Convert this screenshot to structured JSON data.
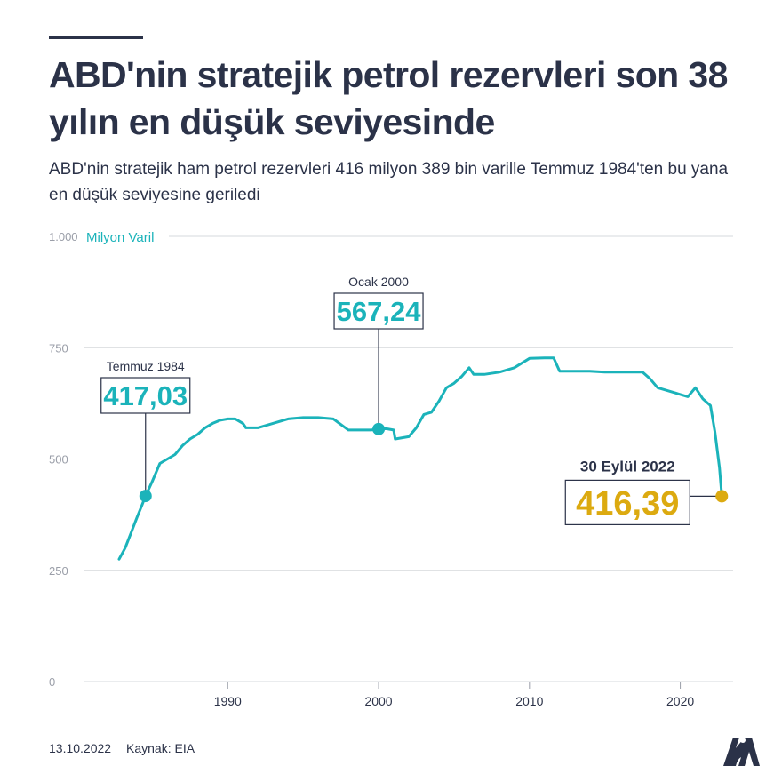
{
  "header": {
    "title": "ABD'nin stratejik petrol rezervleri son 38 yılın en düşük seviyesinde",
    "subtitle": "ABD'nin stratejik ham petrol rezervleri 416 milyon 389 bin varille Temmuz 1984'ten bu yana en düşük seviyesine geriledi"
  },
  "footer": {
    "date": "13.10.2022",
    "source": "Kaynak: EIA",
    "logo_text": "AA"
  },
  "colors": {
    "line": "#1bb3ba",
    "highlight": "#dcaa10",
    "text": "#2b3248",
    "grid": "#d6d8dc"
  },
  "chart_data": {
    "type": "line",
    "ylabel": "Milyon Varil",
    "ylim": [
      0,
      1000
    ],
    "yticks": [
      0,
      250,
      500,
      750,
      1000
    ],
    "ytick_labels": [
      "0",
      "250",
      "500",
      "750",
      "1.000"
    ],
    "xlim": [
      1980.5,
      2023.5
    ],
    "xticks": [
      1990,
      2000,
      2010,
      2020
    ],
    "xtick_labels": [
      "1990",
      "2000",
      "2010",
      "2020"
    ],
    "grid": true,
    "series": [
      {
        "x": [
          1982.8,
          1983.2,
          1983.6,
          1984.0,
          1984.3,
          1984.55,
          1985.0,
          1985.5,
          1986.0,
          1986.5,
          1987.0,
          1987.5,
          1988.0,
          1988.5,
          1989.0,
          1989.5,
          1990.0,
          1990.5,
          1991.0,
          1991.2,
          1992.0,
          1993.0,
          1994.0,
          1995.0,
          1996.0,
          1997.0,
          1998.0,
          1999.0,
          1999.5,
          2000.0,
          2000.5,
          2001.0,
          2001.1,
          2002.0,
          2002.5,
          2003.0,
          2003.5,
          2004.0,
          2004.5,
          2005.0,
          2005.5,
          2006.0,
          2006.3,
          2007.0,
          2008.0,
          2008.5,
          2009.0,
          2010.0,
          2011.0,
          2011.6,
          2012.0,
          2013.0,
          2014.0,
          2015.0,
          2016.0,
          2017.0,
          2017.5,
          2018.0,
          2018.5,
          2019.0,
          2020.0,
          2020.5,
          2021.0,
          2021.5,
          2022.0,
          2022.3,
          2022.6,
          2022.75
        ],
        "y": [
          275,
          300,
          335,
          370,
          395,
          417.03,
          450,
          490,
          500,
          510,
          530,
          545,
          555,
          570,
          580,
          587,
          590,
          590,
          580,
          570,
          570,
          580,
          590,
          593,
          593,
          590,
          565,
          565,
          565,
          567.24,
          568,
          565,
          545,
          550,
          570,
          600,
          605,
          630,
          660,
          670,
          685,
          705,
          690,
          690,
          695,
          700,
          705,
          726,
          727,
          727,
          697,
          697,
          697,
          695,
          695,
          695,
          695,
          680,
          660,
          655,
          645,
          640,
          660,
          635,
          620,
          560,
          480,
          416.39
        ]
      }
    ],
    "annotations": [
      {
        "label": "Temmuz 1984",
        "value": "417,03",
        "x": 1984.55,
        "y": 417.03,
        "style": "teal"
      },
      {
        "label": "Ocak 2000",
        "value": "567,24",
        "x": 2000.0,
        "y": 567.24,
        "style": "teal"
      },
      {
        "label": "30 Eylül 2022",
        "value": "416,39",
        "x": 2022.75,
        "y": 416.39,
        "style": "gold"
      }
    ]
  }
}
